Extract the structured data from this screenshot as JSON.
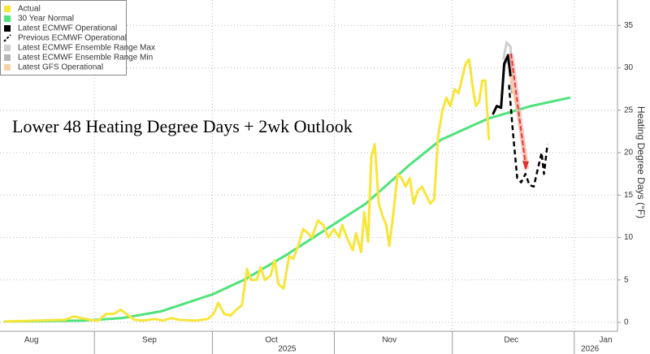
{
  "chart_data": {
    "type": "line",
    "title": "Lower 48 Heating Degree Days + 2wk Outlook",
    "y_label": "Heating Degree Days (°F)",
    "xlim": [
      7,
      164
    ],
    "ylim": [
      -1.05,
      38
    ],
    "yticks": [
      0,
      5,
      10,
      15,
      20,
      25,
      30,
      35
    ],
    "xticks": [
      {
        "value": 15,
        "label": "Aug"
      },
      {
        "value": 45,
        "label": "Sep"
      },
      {
        "value": 76,
        "label": "Oct"
      },
      {
        "value": 106,
        "label": "Nov"
      },
      {
        "value": 137,
        "label": "Dec"
      },
      {
        "value": 161,
        "label": "Jan"
      }
    ],
    "month_bounds": [
      31,
      61,
      92,
      122,
      153
    ],
    "year_labels": [
      {
        "value": 80,
        "label": "2025"
      },
      {
        "value": 157,
        "label": "2026"
      }
    ],
    "grid": true,
    "legend": "top-left",
    "series": [
      {
        "name": "Actual",
        "color": "#f7e53b",
        "style": "solid",
        "x": [
          8.1,
          23.6,
          25.7,
          27.7,
          29.8,
          31.9,
          34.0,
          36.0,
          37.7,
          39.1,
          41.2,
          43.3,
          46.4,
          48.4,
          50.5,
          52.6,
          56.7,
          59.8,
          61.3,
          62.5,
          64.0,
          65.6,
          67.1,
          68.5,
          69.8,
          70.8,
          72.3,
          73.3,
          74.3,
          75.8,
          76.8,
          77.8,
          79.1,
          80.5,
          81.6,
          82.8,
          84.1,
          85.3,
          86.3,
          87.8,
          89.2,
          90.5,
          91.9,
          93.2,
          94.0,
          95.2,
          96.7,
          97.5,
          98.8,
          99.6,
          100.6,
          101.4,
          102.3,
          103.3,
          104.3,
          105.2,
          106.0,
          106.8,
          108.1,
          109.1,
          110.1,
          111.2,
          112.2,
          113.2,
          114.3,
          115.3,
          116.4,
          117.4,
          118.4,
          119.5,
          120.5,
          121.5,
          122.6,
          123.6,
          124.6,
          125.4,
          126.3,
          127.1,
          128.0,
          128.8,
          129.6,
          130.4,
          131.3
        ],
        "values": [
          0.1,
          0.3,
          0.7,
          0.5,
          0.3,
          0.2,
          1.0,
          1.0,
          1.5,
          1.0,
          0.3,
          0.2,
          0.4,
          0.2,
          0.5,
          0.3,
          0.2,
          0.4,
          1.0,
          2.3,
          1.0,
          0.8,
          1.5,
          2.0,
          6.3,
          5.0,
          5.0,
          6.5,
          5.0,
          5.5,
          7.3,
          4.5,
          4.0,
          7.8,
          7.5,
          9.0,
          11.0,
          10.5,
          10.0,
          12.0,
          11.5,
          10.0,
          11.0,
          10.0,
          11.5,
          10.0,
          8.5,
          10.5,
          8.3,
          13.0,
          9.5,
          19.5,
          21.0,
          14.0,
          12.5,
          11.5,
          9.0,
          12.0,
          17.5,
          17.0,
          16.0,
          17.0,
          14.0,
          15.5,
          16.0,
          15.0,
          14.0,
          14.5,
          22.0,
          25.0,
          26.5,
          25.5,
          27.5,
          27.0,
          29.0,
          30.5,
          31.0,
          28.0,
          25.5,
          26.0,
          28.5,
          28.5,
          21.5
        ]
      },
      {
        "name": "30 Year Normal",
        "color": "#4fe27b",
        "style": "solid",
        "x": [
          8,
          28,
          38,
          48,
          61,
          69,
          80,
          90,
          100,
          111,
          119,
          131,
          142,
          152
        ],
        "values": [
          0.1,
          0.2,
          0.5,
          1.3,
          3.3,
          5.0,
          8.0,
          11.0,
          14.0,
          18.5,
          21.5,
          24.0,
          25.5,
          26.5
        ]
      },
      {
        "name": "Latest ECMWF Operational",
        "color": "#000000",
        "style": "solid",
        "x": [
          132.3,
          133.3,
          134.4,
          135.2,
          136.2,
          136.8
        ],
        "values": [
          24.5,
          25.5,
          25.3,
          30.5,
          31.5,
          29.0
        ]
      },
      {
        "name": "Previous ECMWF Operational",
        "color": "#000000",
        "style": "dashed",
        "x": [
          136.4,
          137.5,
          138.5,
          139.5,
          140.6,
          141.6,
          142.7,
          143.7,
          144.7,
          145.3,
          146.2
        ],
        "values": [
          28.0,
          22.0,
          17.0,
          16.5,
          17.5,
          16.2,
          16.0,
          18.0,
          20.0,
          17.5,
          21.0
        ]
      },
      {
        "name": "Latest ECMWF Ensemble Range Max",
        "color": "#cfcfcf",
        "style": "solid",
        "x": [
          135.0,
          135.8,
          136.8,
          137.2
        ],
        "values": [
          31.0,
          33.0,
          32.5,
          29.0
        ]
      },
      {
        "name": "Latest ECMWF Ensemble Range Min",
        "color": "#b5b5b5",
        "style": "solid",
        "x": [
          135.0,
          135.8,
          136.8,
          137.2
        ],
        "values": [
          30.0,
          31.0,
          30.0,
          27.0
        ]
      },
      {
        "name": "Latest GFS Operational",
        "color": "#f7d2a6",
        "style": "solid",
        "x": [
          136.8,
          138.9,
          140.9
        ],
        "values": [
          29.0,
          24.0,
          19.0
        ]
      }
    ]
  }
}
